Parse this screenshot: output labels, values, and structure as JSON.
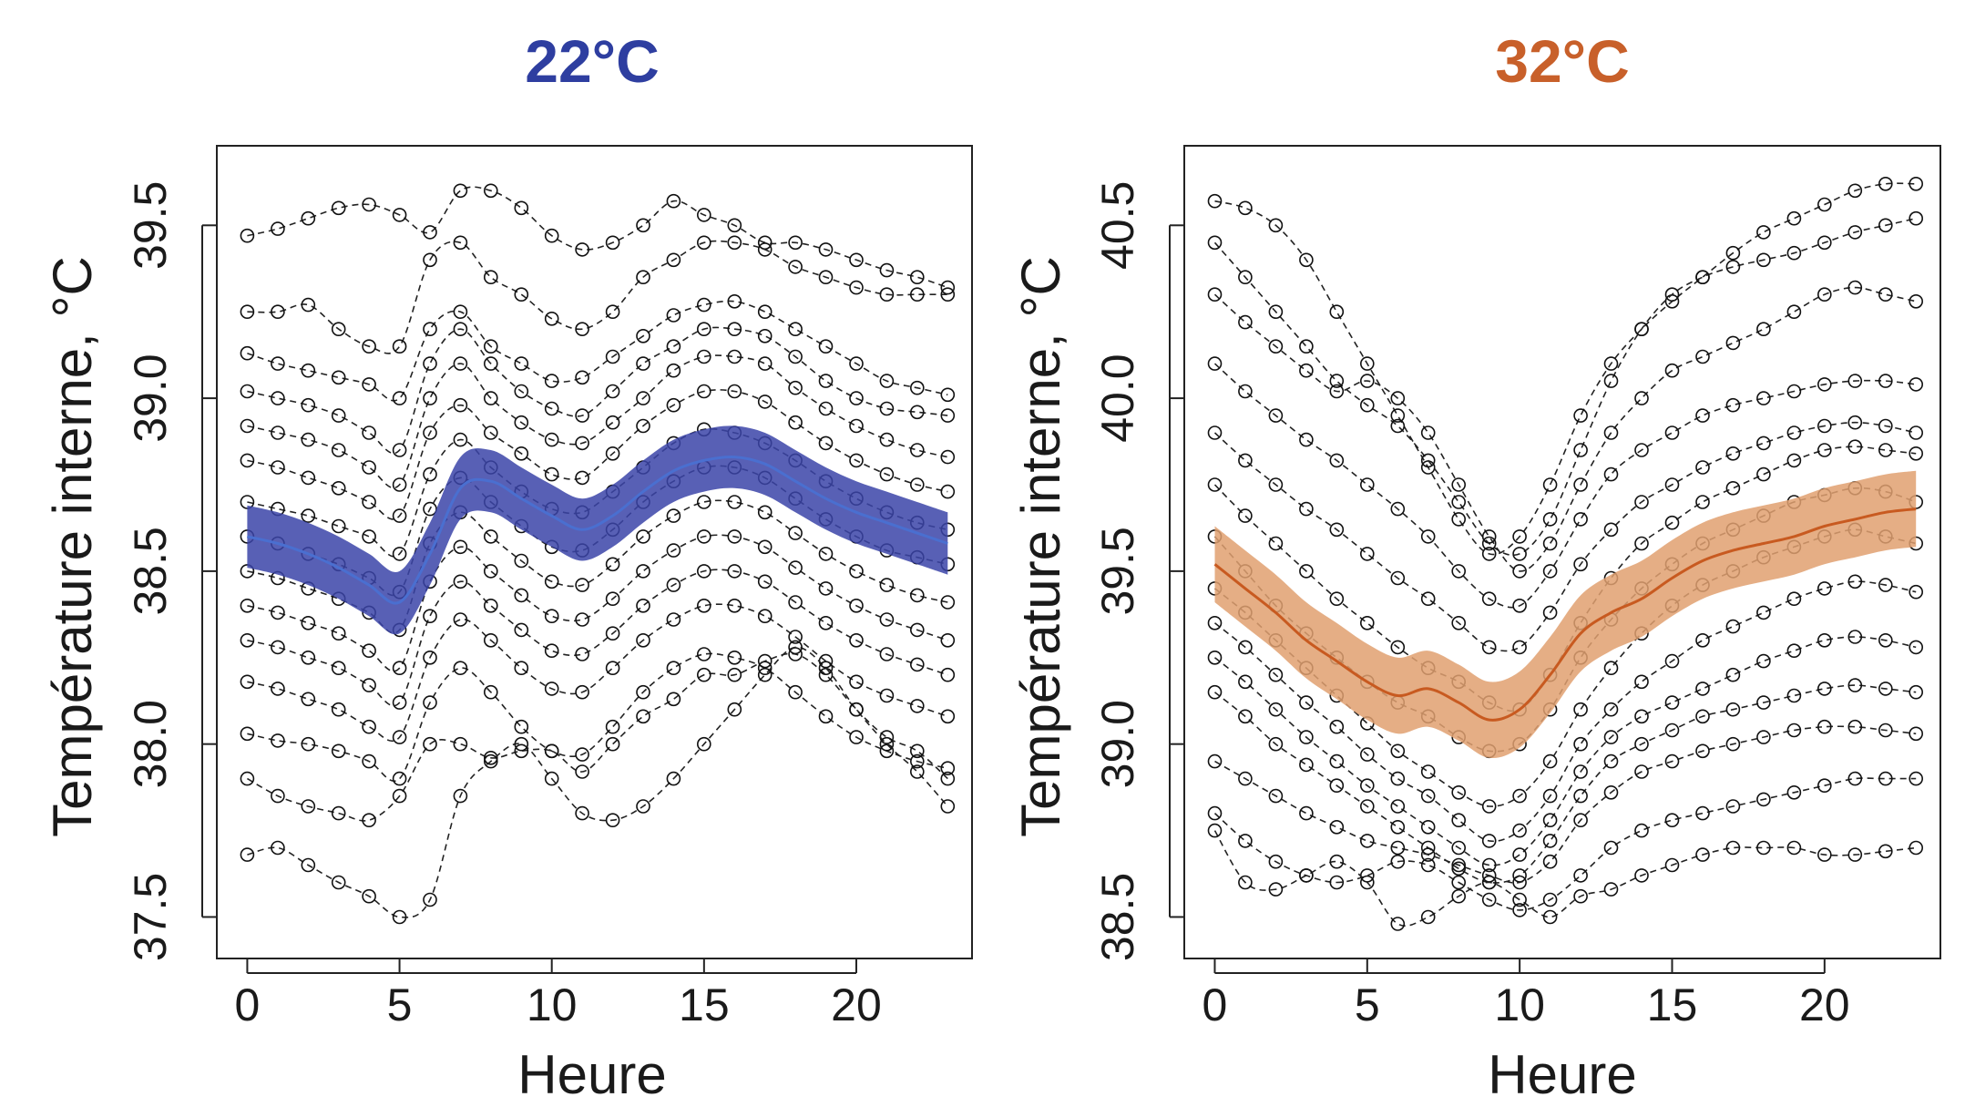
{
  "chart_data": [
    {
      "type": "line",
      "title": "22°C",
      "title_color": "#2E3EA0",
      "band_color": "#3B44A8",
      "mean_color": "#4A6FD0",
      "xlabel": "Heure",
      "ylabel": "Température interne, °C",
      "xlim": [
        -1,
        23.8
      ],
      "ylim": [
        37.38,
        39.73
      ],
      "xticks": [
        "0",
        "5",
        "10",
        "15",
        "20"
      ],
      "xtick_values": [
        0,
        5,
        10,
        15,
        20
      ],
      "yticks": [
        "37.5",
        "38.0",
        "38.5",
        "39.0",
        "39.5"
      ],
      "ytick_values": [
        37.5,
        38.0,
        38.5,
        39.0,
        39.5
      ],
      "mean_curve": [
        {
          "x": 0,
          "y": 38.6
        },
        {
          "x": 1,
          "y": 38.58
        },
        {
          "x": 2,
          "y": 38.55
        },
        {
          "x": 3,
          "y": 38.51
        },
        {
          "x": 4,
          "y": 38.46
        },
        {
          "x": 5,
          "y": 38.41
        },
        {
          "x": 6,
          "y": 38.55
        },
        {
          "x": 7,
          "y": 38.74
        },
        {
          "x": 8,
          "y": 38.76
        },
        {
          "x": 9,
          "y": 38.71
        },
        {
          "x": 10,
          "y": 38.66
        },
        {
          "x": 11,
          "y": 38.62
        },
        {
          "x": 12,
          "y": 38.66
        },
        {
          "x": 13,
          "y": 38.73
        },
        {
          "x": 14,
          "y": 38.79
        },
        {
          "x": 15,
          "y": 38.82
        },
        {
          "x": 16,
          "y": 38.83
        },
        {
          "x": 17,
          "y": 38.81
        },
        {
          "x": 18,
          "y": 38.76
        },
        {
          "x": 19,
          "y": 38.71
        },
        {
          "x": 20,
          "y": 38.67
        },
        {
          "x": 21,
          "y": 38.64
        },
        {
          "x": 22,
          "y": 38.61
        },
        {
          "x": 23,
          "y": 38.58
        }
      ],
      "band_halfwidth": 0.09,
      "individual_curves": [
        [
          39.47,
          39.49,
          39.52,
          39.55,
          39.56,
          39.53,
          39.48,
          39.6,
          39.6,
          39.55,
          39.47,
          39.43,
          39.45,
          39.5,
          39.57,
          39.53,
          39.5,
          39.45,
          39.45,
          39.43,
          39.4,
          39.37,
          39.35,
          39.32
        ],
        [
          39.25,
          39.25,
          39.27,
          39.2,
          39.15,
          39.15,
          39.4,
          39.45,
          39.35,
          39.3,
          39.23,
          39.2,
          39.25,
          39.35,
          39.4,
          39.45,
          39.45,
          39.43,
          39.38,
          39.35,
          39.32,
          39.3,
          39.3,
          39.3
        ],
        [
          39.13,
          39.1,
          39.08,
          39.06,
          39.04,
          39.0,
          39.2,
          39.25,
          39.15,
          39.1,
          39.05,
          39.06,
          39.12,
          39.18,
          39.24,
          39.27,
          39.28,
          39.25,
          39.2,
          39.15,
          39.1,
          39.05,
          39.03,
          39.01
        ],
        [
          39.02,
          39.0,
          38.98,
          38.95,
          38.9,
          38.85,
          39.1,
          39.2,
          39.1,
          39.02,
          38.97,
          38.95,
          39.02,
          39.1,
          39.15,
          39.2,
          39.2,
          39.18,
          39.12,
          39.05,
          39.0,
          38.97,
          38.96,
          38.95
        ],
        [
          38.92,
          38.9,
          38.88,
          38.85,
          38.8,
          38.75,
          39.0,
          39.1,
          39.0,
          38.93,
          38.88,
          38.87,
          38.93,
          39.0,
          39.08,
          39.12,
          39.12,
          39.1,
          39.03,
          38.97,
          38.92,
          38.88,
          38.85,
          38.83
        ],
        [
          38.82,
          38.8,
          38.77,
          38.74,
          38.7,
          38.66,
          38.9,
          38.98,
          38.9,
          38.84,
          38.78,
          38.77,
          38.84,
          38.92,
          38.98,
          39.02,
          39.02,
          38.99,
          38.93,
          38.87,
          38.82,
          38.78,
          38.75,
          38.73
        ],
        [
          38.7,
          38.68,
          38.66,
          38.63,
          38.6,
          38.55,
          38.78,
          38.88,
          38.8,
          38.73,
          38.68,
          38.67,
          38.73,
          38.8,
          38.87,
          38.91,
          38.9,
          38.87,
          38.82,
          38.76,
          38.71,
          38.67,
          38.64,
          38.62
        ],
        [
          38.6,
          38.58,
          38.55,
          38.52,
          38.48,
          38.44,
          38.68,
          38.77,
          38.7,
          38.63,
          38.57,
          38.56,
          38.62,
          38.7,
          38.76,
          38.8,
          38.8,
          38.77,
          38.71,
          38.65,
          38.6,
          38.56,
          38.54,
          38.52
        ],
        [
          38.5,
          38.48,
          38.45,
          38.42,
          38.38,
          38.33,
          38.58,
          38.67,
          38.6,
          38.53,
          38.47,
          38.46,
          38.52,
          38.6,
          38.66,
          38.7,
          38.7,
          38.67,
          38.61,
          38.55,
          38.5,
          38.46,
          38.43,
          38.41
        ],
        [
          38.4,
          38.38,
          38.35,
          38.32,
          38.27,
          38.22,
          38.47,
          38.57,
          38.5,
          38.43,
          38.37,
          38.36,
          38.42,
          38.5,
          38.56,
          38.6,
          38.6,
          38.57,
          38.51,
          38.45,
          38.4,
          38.36,
          38.33,
          38.3
        ],
        [
          38.3,
          38.28,
          38.25,
          38.22,
          38.17,
          38.12,
          38.37,
          38.47,
          38.4,
          38.33,
          38.27,
          38.26,
          38.32,
          38.4,
          38.46,
          38.5,
          38.5,
          38.47,
          38.41,
          38.35,
          38.3,
          38.26,
          38.23,
          38.2
        ],
        [
          38.18,
          38.16,
          38.13,
          38.1,
          38.05,
          38.02,
          38.25,
          38.36,
          38.3,
          38.22,
          38.16,
          38.15,
          38.22,
          38.3,
          38.36,
          38.4,
          38.4,
          38.37,
          38.31,
          38.24,
          38.18,
          38.14,
          38.11,
          38.08
        ],
        [
          38.03,
          38.01,
          38.0,
          37.98,
          37.95,
          37.9,
          38.12,
          38.22,
          38.15,
          38.05,
          37.98,
          37.97,
          38.05,
          38.15,
          38.22,
          38.26,
          38.25,
          38.22,
          38.15,
          38.08,
          38.02,
          37.98,
          37.95,
          37.93
        ],
        [
          37.9,
          37.85,
          37.82,
          37.8,
          37.78,
          37.85,
          38.0,
          38.0,
          37.96,
          37.98,
          37.98,
          37.92,
          38.0,
          38.08,
          38.13,
          38.2,
          38.2,
          38.24,
          38.26,
          38.2,
          38.1,
          38.02,
          37.98,
          37.9
        ],
        [
          37.68,
          37.7,
          37.65,
          37.6,
          37.56,
          37.5,
          37.55,
          37.85,
          37.95,
          38.0,
          37.9,
          37.8,
          37.78,
          37.82,
          37.9,
          38.0,
          38.1,
          38.2,
          38.28,
          38.22,
          38.1,
          38.0,
          37.92,
          37.82
        ]
      ]
    },
    {
      "type": "line",
      "title": "32°C",
      "title_color": "#C8602A",
      "band_color": "#E0A070",
      "mean_color": "#C85A20",
      "xlabel": "Heure",
      "ylabel": "Température interne, °C",
      "xlim": [
        -1,
        23.8
      ],
      "ylim": [
        38.38,
        40.73
      ],
      "xticks": [
        "0",
        "5",
        "10",
        "15",
        "20"
      ],
      "xtick_values": [
        0,
        5,
        10,
        15,
        20
      ],
      "yticks": [
        "38.5",
        "39.0",
        "39.5",
        "40.0",
        "40.5"
      ],
      "ytick_values": [
        38.5,
        39.0,
        39.5,
        40.0,
        40.5
      ],
      "mean_curve": [
        {
          "x": 0,
          "y": 39.52
        },
        {
          "x": 1,
          "y": 39.45
        },
        {
          "x": 2,
          "y": 39.38
        },
        {
          "x": 3,
          "y": 39.3
        },
        {
          "x": 4,
          "y": 39.24
        },
        {
          "x": 5,
          "y": 39.18
        },
        {
          "x": 6,
          "y": 39.14
        },
        {
          "x": 7,
          "y": 39.16
        },
        {
          "x": 8,
          "y": 39.12
        },
        {
          "x": 9,
          "y": 39.07
        },
        {
          "x": 10,
          "y": 39.1
        },
        {
          "x": 11,
          "y": 39.2
        },
        {
          "x": 12,
          "y": 39.32
        },
        {
          "x": 13,
          "y": 39.38
        },
        {
          "x": 14,
          "y": 39.42
        },
        {
          "x": 15,
          "y": 39.48
        },
        {
          "x": 16,
          "y": 39.53
        },
        {
          "x": 17,
          "y": 39.56
        },
        {
          "x": 18,
          "y": 39.58
        },
        {
          "x": 19,
          "y": 39.6
        },
        {
          "x": 20,
          "y": 39.63
        },
        {
          "x": 21,
          "y": 39.65
        },
        {
          "x": 22,
          "y": 39.67
        },
        {
          "x": 23,
          "y": 39.68
        }
      ],
      "band_halfwidth": 0.11,
      "individual_curves": [
        [
          40.57,
          40.55,
          40.5,
          40.4,
          40.25,
          40.1,
          39.95,
          39.8,
          39.65,
          39.55,
          39.6,
          39.75,
          39.95,
          40.1,
          40.2,
          40.28,
          40.35,
          40.42,
          40.48,
          40.52,
          40.56,
          40.6,
          40.62,
          40.62
        ],
        [
          40.45,
          40.35,
          40.25,
          40.15,
          40.05,
          39.98,
          39.92,
          39.82,
          39.7,
          39.58,
          39.55,
          39.65,
          39.85,
          40.05,
          40.2,
          40.3,
          40.35,
          40.38,
          40.4,
          40.42,
          40.45,
          40.48,
          40.5,
          40.52
        ],
        [
          40.3,
          40.22,
          40.15,
          40.08,
          40.02,
          40.05,
          40.0,
          39.9,
          39.75,
          39.6,
          39.5,
          39.58,
          39.75,
          39.9,
          40.0,
          40.08,
          40.12,
          40.16,
          40.2,
          40.25,
          40.3,
          40.32,
          40.3,
          40.28
        ],
        [
          40.1,
          40.02,
          39.95,
          39.88,
          39.82,
          39.75,
          39.68,
          39.6,
          39.5,
          39.42,
          39.4,
          39.5,
          39.65,
          39.78,
          39.85,
          39.9,
          39.95,
          39.98,
          40.0,
          40.02,
          40.04,
          40.05,
          40.05,
          40.04
        ],
        [
          39.9,
          39.82,
          39.75,
          39.68,
          39.62,
          39.55,
          39.48,
          39.42,
          39.35,
          39.28,
          39.28,
          39.38,
          39.52,
          39.62,
          39.7,
          39.75,
          39.8,
          39.84,
          39.87,
          39.9,
          39.92,
          39.93,
          39.92,
          39.9
        ],
        [
          39.75,
          39.66,
          39.58,
          39.5,
          39.42,
          39.35,
          39.28,
          39.22,
          39.18,
          39.12,
          39.1,
          39.2,
          39.35,
          39.48,
          39.58,
          39.64,
          39.7,
          39.74,
          39.78,
          39.82,
          39.85,
          39.86,
          39.85,
          39.84
        ],
        [
          39.6,
          39.5,
          39.4,
          39.32,
          39.25,
          39.18,
          39.12,
          39.08,
          39.02,
          38.98,
          39.0,
          39.1,
          39.25,
          39.36,
          39.45,
          39.52,
          39.58,
          39.62,
          39.66,
          39.7,
          39.72,
          39.74,
          39.73,
          39.7
        ],
        [
          39.45,
          39.38,
          39.3,
          39.22,
          39.14,
          39.06,
          38.98,
          38.92,
          38.86,
          38.82,
          38.85,
          38.95,
          39.1,
          39.22,
          39.32,
          39.4,
          39.46,
          39.5,
          39.54,
          39.57,
          39.6,
          39.62,
          39.6,
          39.58
        ],
        [
          39.35,
          39.28,
          39.2,
          39.12,
          39.05,
          38.97,
          38.9,
          38.85,
          38.78,
          38.72,
          38.75,
          38.85,
          39.0,
          39.1,
          39.18,
          39.24,
          39.3,
          39.34,
          39.38,
          39.42,
          39.45,
          39.47,
          39.46,
          39.44
        ],
        [
          39.25,
          39.18,
          39.1,
          39.02,
          38.95,
          38.88,
          38.82,
          38.76,
          38.7,
          38.65,
          38.68,
          38.78,
          38.92,
          39.02,
          39.08,
          39.12,
          39.16,
          39.2,
          39.24,
          39.27,
          39.3,
          39.31,
          39.3,
          39.28
        ],
        [
          39.15,
          39.08,
          39.0,
          38.94,
          38.88,
          38.82,
          38.76,
          38.7,
          38.64,
          38.6,
          38.62,
          38.72,
          38.85,
          38.95,
          39.0,
          39.04,
          39.08,
          39.1,
          39.12,
          39.14,
          39.16,
          39.17,
          39.16,
          39.15
        ],
        [
          38.95,
          38.9,
          38.85,
          38.8,
          38.76,
          38.72,
          38.7,
          38.68,
          38.65,
          38.62,
          38.6,
          38.66,
          38.78,
          38.86,
          38.92,
          38.95,
          38.98,
          39.0,
          39.02,
          39.04,
          39.05,
          39.05,
          39.04,
          39.03
        ],
        [
          38.8,
          38.72,
          38.66,
          38.62,
          38.6,
          38.62,
          38.66,
          38.65,
          38.6,
          38.55,
          38.52,
          38.55,
          38.62,
          38.7,
          38.75,
          38.78,
          38.8,
          38.82,
          38.84,
          38.86,
          38.88,
          38.9,
          38.9,
          38.9
        ],
        [
          38.75,
          38.6,
          38.58,
          38.62,
          38.66,
          38.6,
          38.48,
          38.5,
          38.56,
          38.6,
          38.55,
          38.5,
          38.56,
          38.58,
          38.62,
          38.65,
          38.68,
          38.7,
          38.7,
          38.7,
          38.68,
          38.68,
          38.69,
          38.7
        ]
      ]
    }
  ]
}
